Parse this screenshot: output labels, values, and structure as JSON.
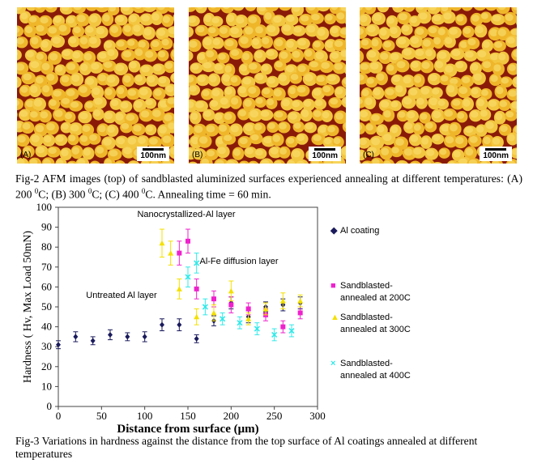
{
  "afm_panels": [
    {
      "label": "(A)",
      "scale": "100nm"
    },
    {
      "label": "(B)",
      "scale": "100nm"
    },
    {
      "label": "(C)",
      "scale": "100nm"
    }
  ],
  "fig2_caption": "Fig-2 AFM images (top) of sandblasted aluminized surfaces experienced annealing at different temperatures: (A) 200 0C; (B) 300 0C; (C) 400 0C. Annealing time = 60 min.",
  "fig3_caption": "Fig-3 Variations in hardness against the distance from the top surface of Al coatings annealed at different temperatures",
  "colors": {
    "afm_base": "#f2c23a",
    "afm_crack": "#8a1a08",
    "al": "#1a1a5c",
    "s200": "#ee22cc",
    "s300": "#f4e000",
    "s400": "#33e8e8"
  },
  "chart_data": {
    "type": "scatter",
    "xlabel": "Distance from surface (μm)",
    "ylabel": "Hardness ( Hv, Max Load 50mN)",
    "xlim": [
      0,
      300
    ],
    "ylim": [
      0,
      100
    ],
    "xticks": [
      "0",
      "50",
      "100",
      "150",
      "200",
      "250",
      "300"
    ],
    "yticks": [
      "0",
      "10",
      "20",
      "30",
      "40",
      "50",
      "60",
      "70",
      "80",
      "90",
      "100"
    ],
    "grid": false,
    "legend_position": "right",
    "annotations": [
      "Nanocrystallized-Al layer",
      "Al-Fe diffusion layer",
      "Untreated Al layer"
    ],
    "series": [
      {
        "name": "Al coating",
        "marker": "◆",
        "color": "#1a1a5c",
        "x": [
          0,
          20,
          40,
          60,
          80,
          100,
          120,
          140,
          160,
          180,
          200,
          220,
          240,
          260,
          280
        ],
        "y": [
          31,
          35,
          33,
          36,
          35,
          35,
          41,
          41,
          34,
          43,
          52,
          45,
          50,
          51,
          52
        ],
        "err": [
          2,
          2.5,
          2,
          2.5,
          2,
          2.5,
          3,
          3,
          2,
          2.5,
          3,
          3,
          2.5,
          3,
          3
        ]
      },
      {
        "name": "Sandblasted-\nannealed at 200C",
        "marker": "■",
        "color": "#ee22cc",
        "x": [
          140,
          150,
          160,
          180,
          200,
          220,
          240,
          260,
          280
        ],
        "y": [
          77,
          83,
          59,
          54,
          51,
          49,
          46,
          40,
          47
        ],
        "err": [
          6,
          6,
          5,
          4,
          4,
          3,
          3,
          3,
          3
        ]
      },
      {
        "name": "Sandblasted-\nannealed at 300C",
        "marker": "▲",
        "color": "#f4e000",
        "x": [
          120,
          130,
          140,
          160,
          180,
          200,
          220,
          240,
          260,
          280
        ],
        "y": [
          82,
          77,
          59,
          45,
          47,
          58,
          44,
          49,
          53,
          53
        ],
        "err": [
          7,
          6,
          5,
          4,
          4,
          5,
          3,
          3,
          4,
          3
        ]
      },
      {
        "name": "Sandblasted-\nannealed at 400C",
        "marker": "×",
        "color": "#33e8e8",
        "x": [
          150,
          160,
          170,
          190,
          210,
          230,
          250,
          270
        ],
        "y": [
          65,
          72,
          50,
          44,
          42,
          39,
          36,
          38
        ],
        "err": [
          5,
          5,
          4,
          3,
          3,
          3,
          3,
          3
        ]
      }
    ]
  }
}
